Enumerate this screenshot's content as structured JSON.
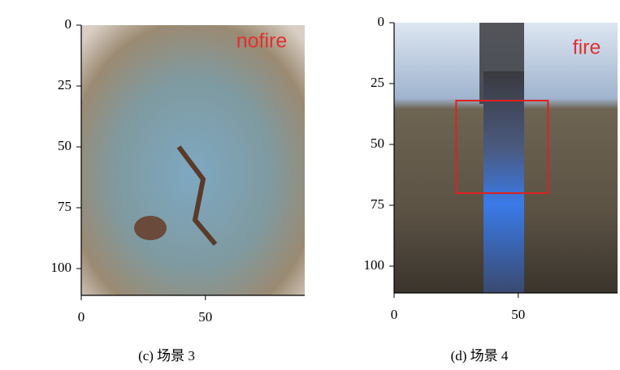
{
  "chart_data": [
    {
      "type": "image",
      "label": "nofire",
      "caption": "(c) 场景 3",
      "xlim": [
        0,
        90
      ],
      "ylim": [
        111,
        0
      ],
      "xticks": [
        0,
        50
      ],
      "yticks": [
        0,
        25,
        50,
        75,
        100
      ]
    },
    {
      "type": "image",
      "label": "fire",
      "caption": "(d) 场景 4",
      "xlim": [
        0,
        90
      ],
      "ylim": [
        111,
        0
      ],
      "xticks": [
        0,
        50
      ],
      "yticks": [
        0,
        25,
        50,
        75,
        100
      ],
      "box": {
        "x": [
          25,
          62
        ],
        "y": [
          32,
          70
        ],
        "color": "#e02020"
      }
    }
  ]
}
